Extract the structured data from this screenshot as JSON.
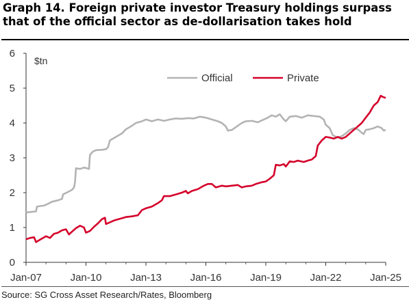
{
  "title": "Graph 14. Foreign private investor Treasury holdings surpass that of the official sector as de-dollarisation takes hold",
  "source": "Source: SG Cross Asset Research/Rates, Bloomberg",
  "chart_data": {
    "type": "line",
    "ylabel": "$tn",
    "ylim": [
      0,
      6
    ],
    "yticks": [
      0,
      1,
      2,
      3,
      4,
      5,
      6
    ],
    "xlim": [
      2007.0,
      2025.0
    ],
    "xticks": [
      {
        "label": "Jan-07",
        "x": 2007.0
      },
      {
        "label": "Jan-10",
        "x": 2010.0
      },
      {
        "label": "Jan-13",
        "x": 2013.0
      },
      {
        "label": "Jan-16",
        "x": 2016.0
      },
      {
        "label": "Jan-19",
        "x": 2019.0
      },
      {
        "label": "Jan-22",
        "x": 2022.0
      },
      {
        "label": "Jan-25",
        "x": 2025.0
      }
    ],
    "grid": false,
    "legend_position": "top-right",
    "series": [
      {
        "name": "Official",
        "color": "#b3b3b3",
        "points": [
          [
            2007.0,
            1.43
          ],
          [
            2007.3,
            1.45
          ],
          [
            2007.5,
            1.46
          ],
          [
            2007.55,
            1.6
          ],
          [
            2007.9,
            1.63
          ],
          [
            2008.1,
            1.68
          ],
          [
            2008.3,
            1.74
          ],
          [
            2008.6,
            1.78
          ],
          [
            2008.8,
            1.82
          ],
          [
            2008.85,
            1.95
          ],
          [
            2009.1,
            2.02
          ],
          [
            2009.3,
            2.08
          ],
          [
            2009.4,
            2.15
          ],
          [
            2009.45,
            2.3
          ],
          [
            2009.5,
            2.7
          ],
          [
            2009.7,
            2.68
          ],
          [
            2009.9,
            2.72
          ],
          [
            2010.05,
            2.7
          ],
          [
            2010.15,
            2.68
          ],
          [
            2010.2,
            3.08
          ],
          [
            2010.35,
            3.18
          ],
          [
            2010.5,
            3.22
          ],
          [
            2010.8,
            3.23
          ],
          [
            2011.0,
            3.25
          ],
          [
            2011.1,
            3.3
          ],
          [
            2011.2,
            3.5
          ],
          [
            2011.5,
            3.6
          ],
          [
            2011.8,
            3.7
          ],
          [
            2012.0,
            3.82
          ],
          [
            2012.3,
            3.92
          ],
          [
            2012.5,
            4.0
          ],
          [
            2012.8,
            4.05
          ],
          [
            2013.0,
            4.1
          ],
          [
            2013.3,
            4.05
          ],
          [
            2013.6,
            4.1
          ],
          [
            2013.9,
            4.06
          ],
          [
            2014.2,
            4.1
          ],
          [
            2014.5,
            4.13
          ],
          [
            2014.8,
            4.12
          ],
          [
            2015.1,
            4.14
          ],
          [
            2015.4,
            4.13
          ],
          [
            2015.7,
            4.18
          ],
          [
            2016.0,
            4.15
          ],
          [
            2016.3,
            4.1
          ],
          [
            2016.6,
            4.05
          ],
          [
            2016.8,
            4.0
          ],
          [
            2017.0,
            3.9
          ],
          [
            2017.1,
            3.78
          ],
          [
            2017.3,
            3.8
          ],
          [
            2017.6,
            3.92
          ],
          [
            2017.8,
            4.0
          ],
          [
            2018.0,
            4.05
          ],
          [
            2018.3,
            4.06
          ],
          [
            2018.6,
            4.02
          ],
          [
            2018.9,
            4.1
          ],
          [
            2019.1,
            4.15
          ],
          [
            2019.3,
            4.22
          ],
          [
            2019.5,
            4.18
          ],
          [
            2019.7,
            4.25
          ],
          [
            2019.9,
            4.1
          ],
          [
            2020.0,
            4.05
          ],
          [
            2020.2,
            4.18
          ],
          [
            2020.5,
            4.2
          ],
          [
            2020.8,
            4.15
          ],
          [
            2021.1,
            4.22
          ],
          [
            2021.4,
            4.2
          ],
          [
            2021.7,
            4.18
          ],
          [
            2021.9,
            4.1
          ],
          [
            2022.0,
            3.95
          ],
          [
            2022.2,
            3.85
          ],
          [
            2022.35,
            3.65
          ],
          [
            2022.6,
            3.58
          ],
          [
            2022.8,
            3.62
          ],
          [
            2023.0,
            3.7
          ],
          [
            2023.2,
            3.8
          ],
          [
            2023.4,
            3.85
          ],
          [
            2023.6,
            3.82
          ],
          [
            2023.8,
            3.72
          ],
          [
            2023.9,
            3.68
          ],
          [
            2024.0,
            3.8
          ],
          [
            2024.2,
            3.82
          ],
          [
            2024.4,
            3.85
          ],
          [
            2024.6,
            3.9
          ],
          [
            2024.8,
            3.85
          ],
          [
            2024.9,
            3.78
          ],
          [
            2025.0,
            3.8
          ]
        ]
      },
      {
        "name": "Private",
        "color": "#d4002a",
        "points": [
          [
            2007.0,
            0.66
          ],
          [
            2007.2,
            0.7
          ],
          [
            2007.4,
            0.72
          ],
          [
            2007.5,
            0.58
          ],
          [
            2007.7,
            0.65
          ],
          [
            2008.0,
            0.75
          ],
          [
            2008.2,
            0.7
          ],
          [
            2008.4,
            0.82
          ],
          [
            2008.6,
            0.85
          ],
          [
            2008.8,
            0.92
          ],
          [
            2009.0,
            0.95
          ],
          [
            2009.15,
            0.8
          ],
          [
            2009.3,
            0.88
          ],
          [
            2009.5,
            0.98
          ],
          [
            2009.7,
            1.05
          ],
          [
            2009.9,
            1.0
          ],
          [
            2010.0,
            0.85
          ],
          [
            2010.2,
            0.9
          ],
          [
            2010.4,
            1.02
          ],
          [
            2010.6,
            1.12
          ],
          [
            2010.8,
            1.24
          ],
          [
            2010.95,
            1.28
          ],
          [
            2011.0,
            1.1
          ],
          [
            2011.2,
            1.15
          ],
          [
            2011.4,
            1.2
          ],
          [
            2011.7,
            1.25
          ],
          [
            2012.0,
            1.3
          ],
          [
            2012.3,
            1.32
          ],
          [
            2012.6,
            1.35
          ],
          [
            2012.8,
            1.5
          ],
          [
            2013.0,
            1.55
          ],
          [
            2013.3,
            1.6
          ],
          [
            2013.6,
            1.7
          ],
          [
            2013.8,
            1.78
          ],
          [
            2013.9,
            1.9
          ],
          [
            2014.2,
            1.9
          ],
          [
            2014.5,
            1.95
          ],
          [
            2014.8,
            2.0
          ],
          [
            2015.0,
            2.05
          ],
          [
            2015.1,
            1.98
          ],
          [
            2015.3,
            2.05
          ],
          [
            2015.6,
            2.1
          ],
          [
            2015.9,
            2.2
          ],
          [
            2016.1,
            2.25
          ],
          [
            2016.3,
            2.25
          ],
          [
            2016.5,
            2.15
          ],
          [
            2016.8,
            2.2
          ],
          [
            2017.0,
            2.18
          ],
          [
            2017.3,
            2.2
          ],
          [
            2017.6,
            2.22
          ],
          [
            2017.8,
            2.15
          ],
          [
            2018.0,
            2.18
          ],
          [
            2018.3,
            2.2
          ],
          [
            2018.5,
            2.25
          ],
          [
            2018.8,
            2.3
          ],
          [
            2019.0,
            2.32
          ],
          [
            2019.2,
            2.4
          ],
          [
            2019.4,
            2.5
          ],
          [
            2019.5,
            2.8
          ],
          [
            2019.7,
            2.78
          ],
          [
            2019.9,
            2.82
          ],
          [
            2020.0,
            2.75
          ],
          [
            2020.2,
            2.9
          ],
          [
            2020.4,
            2.88
          ],
          [
            2020.6,
            2.92
          ],
          [
            2020.9,
            2.88
          ],
          [
            2021.1,
            2.92
          ],
          [
            2021.3,
            2.95
          ],
          [
            2021.4,
            3.0
          ],
          [
            2021.5,
            3.05
          ],
          [
            2021.6,
            3.35
          ],
          [
            2021.8,
            3.5
          ],
          [
            2022.0,
            3.6
          ],
          [
            2022.2,
            3.58
          ],
          [
            2022.4,
            3.55
          ],
          [
            2022.6,
            3.6
          ],
          [
            2022.8,
            3.55
          ],
          [
            2023.0,
            3.6
          ],
          [
            2023.2,
            3.7
          ],
          [
            2023.4,
            3.8
          ],
          [
            2023.6,
            3.9
          ],
          [
            2023.8,
            4.0
          ],
          [
            2024.0,
            4.15
          ],
          [
            2024.2,
            4.3
          ],
          [
            2024.4,
            4.5
          ],
          [
            2024.6,
            4.6
          ],
          [
            2024.75,
            4.78
          ],
          [
            2024.85,
            4.75
          ],
          [
            2025.0,
            4.72
          ]
        ]
      }
    ]
  }
}
